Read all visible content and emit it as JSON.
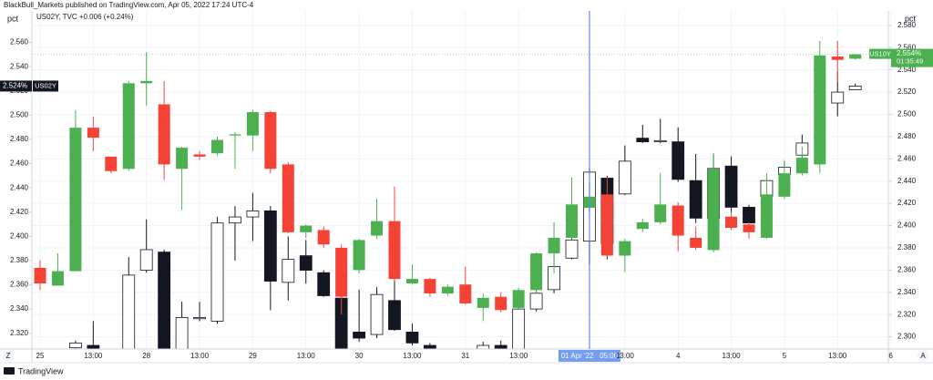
{
  "chart_data": {
    "type": "candlestick",
    "title": "BlackBull_Markets published on TradingView.com, Apr 05, 2022 17:24 UTC-4",
    "subtitle": "US02Y, TVC  +0.006 (+0.24%)",
    "ylabel": "pct",
    "y2label": "pct",
    "footer": "TradingView",
    "buttons": [
      "Z",
      "A"
    ],
    "crosshair_color": "#5b8def",
    "grid": true,
    "categories": [
      "25",
      null,
      null,
      "13:00",
      null,
      null,
      "28",
      null,
      null,
      "13:00",
      null,
      null,
      "29",
      null,
      null,
      "13:00",
      null,
      null,
      "30",
      null,
      null,
      "13:00",
      null,
      null,
      "31",
      null,
      null,
      "13:00",
      null,
      null,
      null,
      "01 Apr '22   05:00",
      null,
      "13:00",
      null,
      null,
      "4",
      null,
      null,
      "13:00",
      null,
      null,
      "5",
      null,
      null,
      "13:00",
      null,
      null,
      "6"
    ],
    "crosshair_category": 31,
    "ylim": [
      2.307,
      2.586
    ],
    "yticks": [
      {
        "value": 2.32,
        "label": "2.320"
      },
      {
        "value": 2.34,
        "label": "2.340"
      },
      {
        "value": 2.36,
        "label": "2.360"
      },
      {
        "value": 2.38,
        "label": "2.380"
      },
      {
        "value": 2.4,
        "label": "2.400"
      },
      {
        "value": 2.42,
        "label": "2.420"
      },
      {
        "value": 2.44,
        "label": "2.440"
      },
      {
        "value": 2.46,
        "label": "2.460"
      },
      {
        "value": 2.48,
        "label": "2.480"
      },
      {
        "value": 2.5,
        "label": "2.500"
      },
      {
        "value": 2.52,
        "label": "2.520"
      },
      {
        "value": 2.54,
        "label": "2.540"
      },
      {
        "value": 2.56,
        "label": "2.560"
      }
    ],
    "y2lim": [
      2.289,
      2.593
    ],
    "y2ticks": [
      {
        "value": 2.3,
        "label": "2.300"
      },
      {
        "value": 2.32,
        "label": "2.320"
      },
      {
        "value": 2.34,
        "label": "2.340"
      },
      {
        "value": 2.36,
        "label": "2.360"
      },
      {
        "value": 2.38,
        "label": "2.380"
      },
      {
        "value": 2.4,
        "label": "2.400"
      },
      {
        "value": 2.42,
        "label": "2.420"
      },
      {
        "value": 2.44,
        "label": "2.440"
      },
      {
        "value": 2.46,
        "label": "2.460"
      },
      {
        "value": 2.48,
        "label": "2.480"
      },
      {
        "value": 2.5,
        "label": "2.500"
      },
      {
        "value": 2.52,
        "label": "2.520"
      },
      {
        "value": 2.54,
        "label": "2.540"
      },
      {
        "value": 2.56,
        "label": "2.560"
      },
      {
        "value": 2.58,
        "label": "2.580"
      }
    ],
    "series": [
      {
        "name": "US02Y",
        "axis": "y",
        "last_label": "2.524%",
        "up_color": "#ffffff",
        "down_color": "#131722",
        "outline": "#131722",
        "open": [
          null,
          null,
          2.308,
          2.31,
          null,
          2.302,
          2.372,
          2.387,
          2.302,
          2.332,
          2.33,
          2.411,
          2.416,
          2.421,
          2.362,
          2.384,
          2.37,
          2.349,
          2.321,
          2.319,
          2.347,
          2.321,
          2.31,
          null,
          null,
          2.307,
          2.31,
          2.307,
          2.34,
          2.356,
          2.382,
          2.396,
          2.448,
          2.435,
          2.481,
          2.478,
          2.478,
          2.446,
          2.415,
          2.458,
          2.424,
          2.433,
          2.451,
          2.467,
          null,
          2.51,
          2.521,
          null,
          null
        ],
        "high": [
          null,
          null,
          2.314,
          2.33,
          null,
          2.383,
          2.414,
          2.389,
          2.346,
          2.346,
          2.416,
          2.425,
          2.436,
          2.425,
          2.4,
          2.397,
          2.372,
          2.356,
          2.356,
          2.358,
          2.371,
          2.328,
          2.312,
          null,
          null,
          2.313,
          2.314,
          2.351,
          2.37,
          2.391,
          2.401,
          2.456,
          2.45,
          2.475,
          2.492,
          2.497,
          2.49,
          2.468,
          2.468,
          2.466,
          2.426,
          2.446,
          2.461,
          2.484,
          null,
          2.536,
          2.526,
          null,
          null
        ],
        "low": [
          null,
          null,
          2.306,
          2.303,
          null,
          2.3,
          2.37,
          2.3,
          2.3,
          2.33,
          2.328,
          2.38,
          2.396,
          2.339,
          2.347,
          2.361,
          2.35,
          2.305,
          2.313,
          2.316,
          2.322,
          2.31,
          2.305,
          null,
          null,
          2.305,
          2.305,
          2.305,
          2.338,
          2.353,
          2.381,
          2.377,
          2.381,
          2.434,
          2.477,
          2.477,
          2.445,
          2.411,
          2.411,
          2.419,
          2.407,
          2.429,
          2.449,
          2.465,
          null,
          2.499,
          2.521,
          null,
          null
        ],
        "close": [
          null,
          null,
          2.312,
          2.306,
          null,
          2.368,
          2.389,
          2.302,
          2.333,
          2.333,
          2.411,
          2.416,
          2.421,
          2.363,
          2.381,
          2.372,
          2.351,
          2.307,
          2.316,
          2.352,
          2.323,
          2.312,
          2.307,
          null,
          null,
          2.31,
          2.307,
          2.34,
          2.353,
          2.375,
          2.397,
          2.453,
          2.394,
          2.462,
          2.478,
          2.479,
          2.447,
          2.415,
          2.456,
          2.424,
          2.411,
          2.446,
          2.457,
          2.477,
          null,
          2.519,
          2.524,
          null,
          null
        ]
      },
      {
        "name": "US10Y",
        "axis": "y2",
        "last_label": "2.554%",
        "countdown": "01:35:49",
        "up_color": "#4caf50",
        "down_color": "#f44336",
        "outline": null,
        "open": [
          2.362,
          2.346,
          2.359,
          2.488,
          2.462,
          2.451,
          2.528,
          2.509,
          2.451,
          2.464,
          2.465,
          2.481,
          2.481,
          2.502,
          2.455,
          2.394,
          2.396,
          2.38,
          2.36,
          2.391,
          2.404,
          2.348,
          2.352,
          2.339,
          2.347,
          2.326,
          2.336,
          2.326,
          2.342,
          2.375,
          2.389,
          2.416,
          2.428,
          2.373,
          2.397,
          2.403,
          2.418,
          2.389,
          2.378,
          2.408,
          2.401,
          2.389,
          2.426,
          2.447,
          2.455,
          2.552,
          2.55,
          null,
          null
        ],
        "high": [
          2.369,
          2.375,
          2.504,
          2.498,
          2.462,
          2.53,
          2.556,
          2.53,
          2.471,
          2.467,
          2.48,
          2.484,
          2.504,
          2.503,
          2.457,
          2.401,
          2.399,
          2.383,
          2.388,
          2.424,
          2.435,
          2.365,
          2.353,
          2.347,
          2.363,
          2.339,
          2.34,
          2.344,
          2.376,
          2.403,
          2.443,
          2.439,
          2.443,
          2.388,
          2.406,
          2.447,
          2.421,
          2.399,
          2.465,
          2.412,
          2.403,
          2.447,
          2.459,
          2.471,
          2.566,
          2.566,
          2.554,
          null,
          null
        ],
        "low": [
          2.342,
          2.346,
          2.359,
          2.467,
          2.447,
          2.449,
          2.508,
          2.441,
          2.414,
          2.459,
          2.463,
          2.451,
          2.467,
          2.447,
          2.393,
          2.389,
          2.38,
          2.32,
          2.357,
          2.388,
          2.35,
          2.347,
          2.336,
          2.337,
          2.329,
          2.314,
          2.322,
          2.324,
          2.339,
          2.357,
          2.388,
          2.412,
          2.371,
          2.358,
          2.394,
          2.401,
          2.377,
          2.378,
          2.376,
          2.396,
          2.388,
          2.388,
          2.424,
          2.445,
          2.447,
          2.529,
          2.549,
          null,
          null
        ],
        "close": [
          2.348,
          2.359,
          2.488,
          2.479,
          2.449,
          2.528,
          2.53,
          2.455,
          2.47,
          2.462,
          2.477,
          2.482,
          2.502,
          2.451,
          2.394,
          2.4,
          2.383,
          2.336,
          2.387,
          2.404,
          2.352,
          2.352,
          2.339,
          2.345,
          2.33,
          2.335,
          2.324,
          2.342,
          2.375,
          2.389,
          2.419,
          2.426,
          2.373,
          2.386,
          2.403,
          2.419,
          2.391,
          2.38,
          2.451,
          2.398,
          2.394,
          2.428,
          2.447,
          2.461,
          2.553,
          2.549,
          2.554,
          null,
          null
        ]
      }
    ]
  }
}
